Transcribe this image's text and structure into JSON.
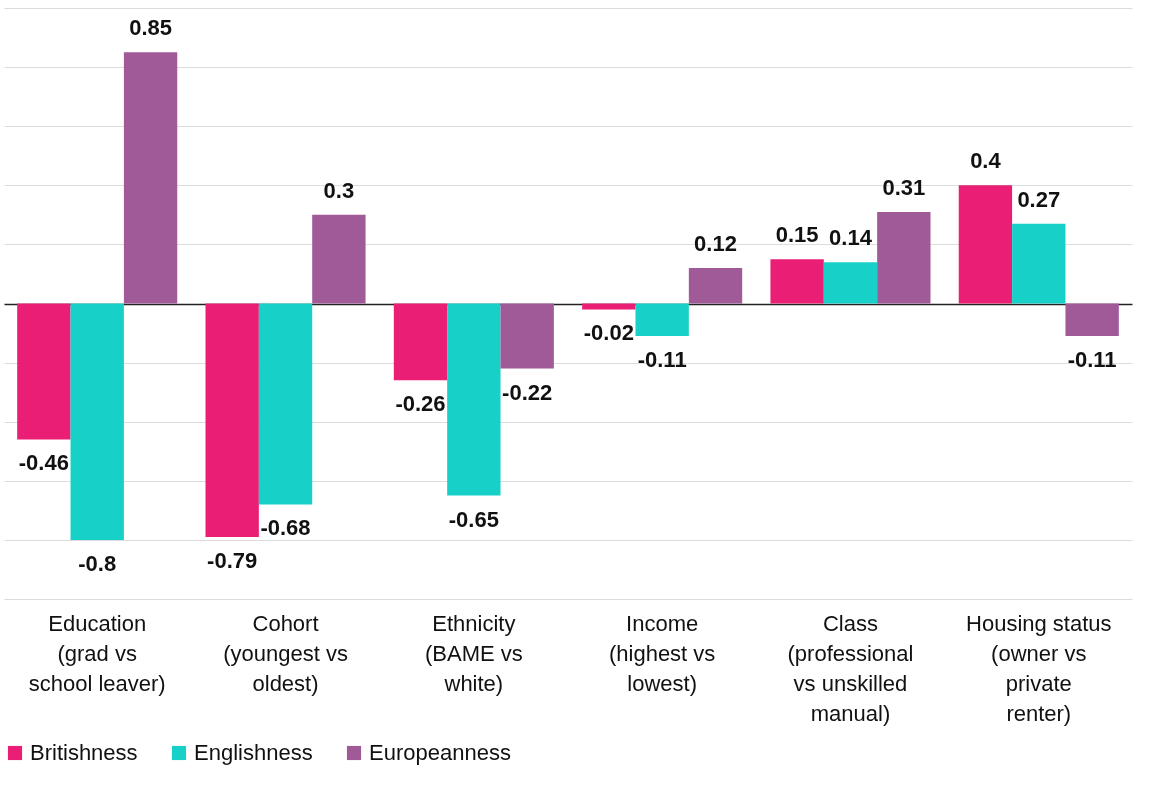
{
  "chart_data": {
    "type": "bar",
    "categories": [
      "Education (grad vs school leaver)",
      "Cohort (youngest vs oldest)",
      "Ethnicity (BAME vs white)",
      "Income (highest vs lowest)",
      "Class (professional vs unskilled manual)",
      "Housing status (owner vs private renter)"
    ],
    "series": [
      {
        "name": "Britishness",
        "color": "#e91e74",
        "values": [
          -0.46,
          -0.79,
          -0.26,
          -0.02,
          0.15,
          0.4
        ]
      },
      {
        "name": "Englishness",
        "color": "#17d0c8",
        "values": [
          -0.8,
          -0.68,
          -0.65,
          -0.11,
          0.14,
          0.27
        ]
      },
      {
        "name": "Europeanness",
        "color": "#a05a98",
        "values": [
          0.85,
          0.3,
          -0.22,
          0.12,
          0.31,
          -0.11
        ]
      }
    ],
    "ylim": [
      -1,
      1
    ],
    "yticks": [
      {
        "value": -1,
        "label": null
      },
      {
        "value": -0.8,
        "label": null
      },
      {
        "value": -0.6,
        "label": null
      },
      {
        "value": -0.4,
        "label": null
      },
      {
        "value": -0.2,
        "label": null
      },
      {
        "value": 0,
        "label": null
      },
      {
        "value": 0.2,
        "label": null
      },
      {
        "value": 0.4,
        "label": null
      },
      {
        "value": 0.6,
        "label": null
      },
      {
        "value": 0.8,
        "label": null
      },
      {
        "value": 1,
        "label": null
      }
    ],
    "grid": true,
    "legend": "bottom",
    "data_labels": true,
    "tick_labels": "x"
  }
}
